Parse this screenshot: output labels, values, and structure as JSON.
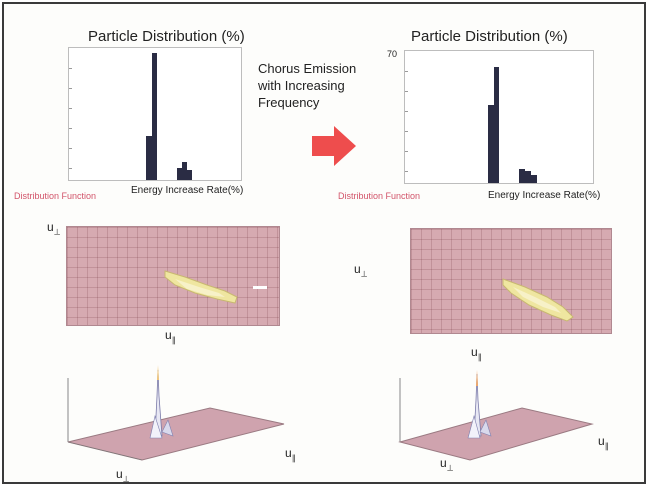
{
  "left": {
    "title": "Particle Distribution (%)",
    "dist_label": "Distribution Function",
    "xlabel": "Energy Increase Rate(%)"
  },
  "right": {
    "title": "Particle Distribution (%)",
    "ymax_label": "70",
    "dist_label": "Distribution Function",
    "xlabel": "Energy Increase Rate(%)"
  },
  "middle": {
    "line1": "Chorus Emission",
    "line2": "with Increasing",
    "line3": "Frequency"
  },
  "symbols": {
    "u_perp": "u",
    "u_perp_sub": "⊥",
    "u_par": "u",
    "u_par_sub": "∥"
  },
  "colors": {
    "arrow": "#ee4d4d",
    "panel": "#d6aab1",
    "bar": "#2a2c44",
    "label_red": "#d2546a"
  }
}
